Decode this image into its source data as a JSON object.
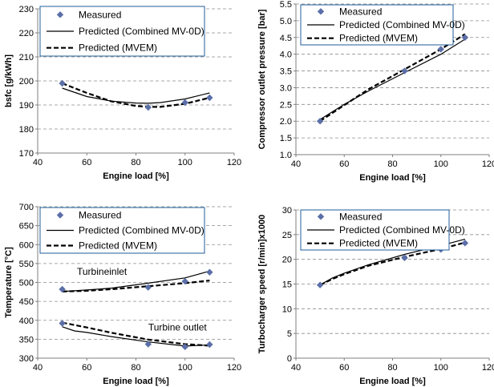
{
  "colors": {
    "marker": "#5b6fa8",
    "grid": "#8c8c8c",
    "axis": "#7f7f7f",
    "legend_border": "#1f5c99",
    "line": "#000000"
  },
  "chart_data": [
    {
      "type": "line",
      "xlabel": "Engine load [%]",
      "ylabel": "bsfc [g/kWh]",
      "xlim": [
        40,
        120
      ],
      "ylim": [
        170,
        230
      ],
      "xticks": [
        40,
        60,
        80,
        100,
        120
      ],
      "yticks": [
        170,
        180,
        190,
        200,
        210,
        220,
        230
      ],
      "grid": "horizontal dashed",
      "legend_position": "top-left",
      "legend": [
        "Measured",
        "Predicted (Combined MV-0D)",
        "Predicted (MVEM)"
      ],
      "series": [
        {
          "name": "Measured",
          "style": "marker",
          "x": [
            50,
            85,
            100,
            110
          ],
          "y": [
            199,
            189,
            191,
            193
          ]
        },
        {
          "name": "Predicted (Combined MV-0D)",
          "style": "solid",
          "x": [
            50,
            60,
            70,
            80,
            85,
            90,
            100,
            110
          ],
          "y": [
            197,
            193.5,
            191.6,
            190.8,
            190.7,
            191,
            192.5,
            195
          ]
        },
        {
          "name": "Predicted (MVEM)",
          "style": "dashed",
          "x": [
            50,
            60,
            70,
            80,
            85,
            90,
            100,
            110
          ],
          "y": [
            199,
            195,
            191.5,
            189.6,
            189.2,
            189.2,
            190.5,
            193
          ]
        }
      ],
      "annotations": []
    },
    {
      "type": "line",
      "xlabel": "Engine load [%]",
      "ylabel": "Compressor outlet pressure [bar]",
      "xlim": [
        40,
        120
      ],
      "ylim": [
        1.0,
        5.5
      ],
      "xticks": [
        40,
        60,
        80,
        100,
        120
      ],
      "yticks": [
        1.0,
        1.5,
        2.0,
        2.5,
        3.0,
        3.5,
        4.0,
        4.5,
        5.0,
        5.5
      ],
      "grid": "horizontal dashed",
      "legend_position": "top-center",
      "legend": [
        "Measured",
        "Predicted (Combined MV-0D)",
        "Predicted (MVEM)"
      ],
      "series": [
        {
          "name": "Measured",
          "style": "marker",
          "x": [
            50,
            85,
            100,
            110
          ],
          "y": [
            2.0,
            3.5,
            4.15,
            4.5
          ]
        },
        {
          "name": "Predicted (Combined MV-0D)",
          "style": "solid",
          "x": [
            50,
            60,
            70,
            85,
            100,
            110
          ],
          "y": [
            2.05,
            2.5,
            2.9,
            3.45,
            4.0,
            4.45
          ]
        },
        {
          "name": "Predicted (MVEM)",
          "style": "dashed",
          "x": [
            50,
            60,
            70,
            85,
            100,
            110
          ],
          "y": [
            2.0,
            2.48,
            2.95,
            3.55,
            4.15,
            4.6
          ]
        }
      ],
      "annotations": []
    },
    {
      "type": "line",
      "xlabel": "Engine load [%]",
      "ylabel": "Temperature [°C]",
      "xlim": [
        40,
        120
      ],
      "ylim": [
        300,
        700
      ],
      "xticks": [
        40,
        60,
        80,
        100,
        120
      ],
      "yticks": [
        300,
        350,
        400,
        450,
        500,
        550,
        600,
        650,
        700
      ],
      "grid": "horizontal dashed",
      "legend_position": "top-left",
      "legend": [
        "Measured",
        "Predicted (Combined MV-0D)",
        "Predicted (MVEM)"
      ],
      "series": [
        {
          "name": "Measured",
          "style": "marker",
          "x": [
            50,
            85,
            100,
            110
          ],
          "y": [
            482,
            487,
            503,
            527
          ]
        },
        {
          "name": "Measured",
          "style": "marker",
          "x": [
            50,
            85,
            100,
            110
          ],
          "y": [
            392,
            337,
            330,
            336
          ]
        },
        {
          "name": "Predicted (Combined MV-0D)",
          "style": "solid",
          "x": [
            50,
            60,
            70,
            85,
            100,
            110
          ],
          "y": [
            476,
            480,
            485,
            498,
            512,
            530
          ]
        },
        {
          "name": "Predicted (MVEM)",
          "style": "dashed",
          "x": [
            50,
            60,
            70,
            85,
            100,
            110
          ],
          "y": [
            476,
            478,
            482,
            490,
            498,
            505
          ]
        },
        {
          "name": "Predicted (Combined MV-0D)",
          "style": "solid",
          "x": [
            50,
            55,
            60,
            70,
            85,
            100,
            110
          ],
          "y": [
            383,
            372,
            368,
            357,
            343,
            332,
            335
          ]
        },
        {
          "name": "Predicted (MVEM)",
          "style": "dashed",
          "x": [
            50,
            60,
            70,
            85,
            100,
            110
          ],
          "y": [
            394,
            381,
            367,
            349,
            337,
            333
          ]
        }
      ],
      "annotations": [
        {
          "text": "Turbineinlet",
          "x": 56,
          "y": 520
        },
        {
          "text": "Turbine outlet",
          "x": 85,
          "y": 373
        }
      ]
    },
    {
      "type": "line",
      "xlabel": "Engine load [%]",
      "ylabel": "Turbocharger speed [r/min]x1000",
      "xlim": [
        40,
        120
      ],
      "ylim": [
        0,
        30
      ],
      "xticks": [
        40,
        60,
        80,
        100,
        120
      ],
      "yticks": [
        0,
        5,
        10,
        15,
        20,
        25,
        30
      ],
      "grid": "horizontal dashed",
      "legend_position": "top-left",
      "legend": [
        "Measured",
        "Predicted (Combined MV-0D)",
        "Predicted (MVEM)"
      ],
      "series": [
        {
          "name": "Measured",
          "style": "marker",
          "x": [
            50,
            85,
            100,
            110
          ],
          "y": [
            14.8,
            20.3,
            22.0,
            23.3
          ]
        },
        {
          "name": "Predicted (Combined MV-0D)",
          "style": "solid",
          "x": [
            50,
            55,
            60,
            70,
            85,
            100,
            110
          ],
          "y": [
            14.8,
            16.2,
            17.2,
            18.9,
            21.0,
            22.8,
            24.1
          ]
        },
        {
          "name": "Predicted (MVEM)",
          "style": "dashed",
          "x": [
            50,
            55,
            60,
            70,
            85,
            100,
            110
          ],
          "y": [
            14.8,
            16.0,
            17.0,
            18.7,
            20.5,
            22.1,
            23.4
          ]
        }
      ],
      "annotations": []
    }
  ]
}
